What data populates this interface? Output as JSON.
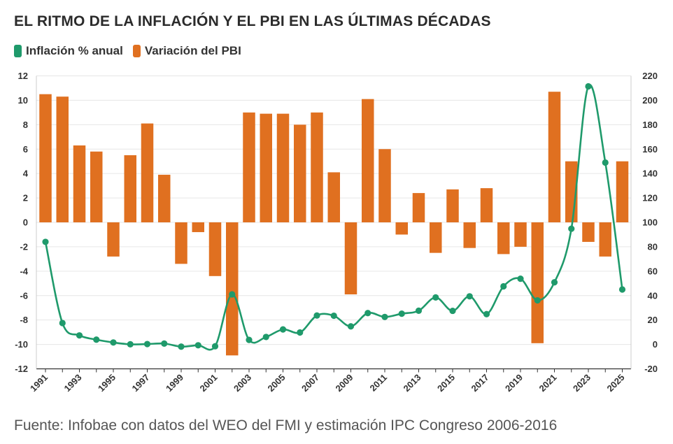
{
  "chart_data": {
    "type": "bar+line",
    "title": "EL RITMO DE LA INFLACIÓN Y EL PBI EN LAS ÚLTIMAS DÉCADAS",
    "source": "Fuente: Infobae con datos del WEO del FMI y estimación IPC Congreso 2006-2016",
    "legend_placement": "top-left",
    "grid": true,
    "categories": [
      "1991",
      "1992",
      "1993",
      "1994",
      "1995",
      "1996",
      "1997",
      "1998",
      "1999",
      "2000",
      "2001",
      "2002",
      "2003",
      "2004",
      "2005",
      "2006",
      "2007",
      "2008",
      "2009",
      "2010",
      "2011",
      "2012",
      "2013",
      "2014",
      "2015",
      "2016",
      "2017",
      "2018",
      "2019",
      "2020",
      "2021",
      "2022",
      "2023",
      "2024",
      "2025"
    ],
    "x_tick_labels": [
      "1991",
      "1993",
      "1995",
      "1997",
      "1999",
      "2001",
      "2003",
      "2005",
      "2007",
      "2009",
      "2011",
      "2013",
      "2015",
      "2017",
      "2019",
      "2021",
      "2023",
      "2025"
    ],
    "y_left": {
      "min": -12,
      "max": 12,
      "step": 2,
      "ticks": [
        "12",
        "10",
        "8",
        "6",
        "4",
        "2",
        "0",
        "-2",
        "-4",
        "-6",
        "-8",
        "-10",
        "-12"
      ]
    },
    "y_right": {
      "min": -20,
      "max": 220,
      "step": 20,
      "ticks": [
        "220",
        "200",
        "180",
        "160",
        "140",
        "120",
        "100",
        "80",
        "60",
        "40",
        "20",
        "0",
        "-20"
      ]
    },
    "series": [
      {
        "name": "Inflación % anual",
        "kind": "line",
        "axis": "right",
        "color": "#1f9a6b",
        "values": [
          84,
          17.5,
          7.4,
          3.9,
          1.6,
          0.1,
          0.3,
          0.7,
          -1.8,
          -0.7,
          -1.5,
          41,
          3.7,
          6.1,
          12.3,
          9.8,
          23.7,
          23.5,
          14.8,
          25.7,
          22.5,
          25.2,
          27.6,
          38.5,
          27.5,
          39.4,
          24.8,
          47.6,
          53.8,
          36.1,
          50.9,
          94.8,
          211.4,
          149,
          45
        ]
      },
      {
        "name": "Variación del PBI",
        "kind": "bar",
        "axis": "left",
        "color": "#e07020",
        "values": [
          10.5,
          10.3,
          6.3,
          5.8,
          -2.8,
          5.5,
          8.1,
          3.9,
          -3.4,
          -0.8,
          -4.4,
          -10.9,
          9.0,
          8.9,
          8.9,
          8.0,
          9.0,
          4.1,
          -5.9,
          10.1,
          6.0,
          -1.0,
          2.4,
          -2.5,
          2.7,
          -2.1,
          2.8,
          -2.6,
          -2.0,
          -9.9,
          10.7,
          5.0,
          -1.6,
          -2.8,
          5.0
        ]
      }
    ]
  }
}
